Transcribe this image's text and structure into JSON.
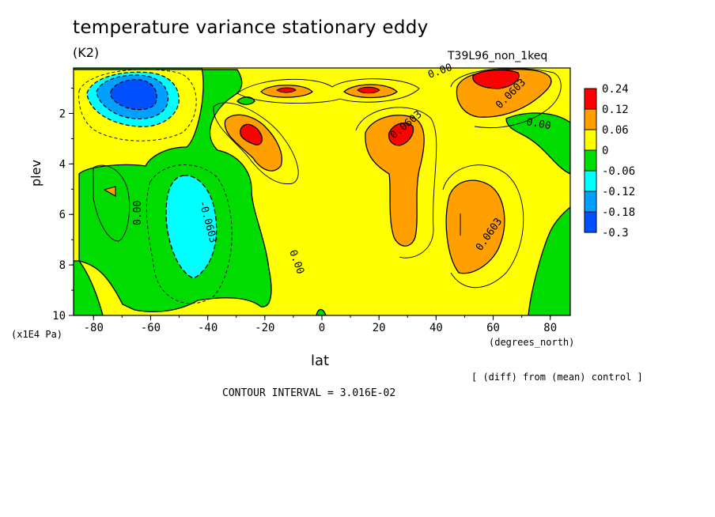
{
  "chart_data": {
    "type": "contour",
    "title": "temperature variance stationary eddy",
    "units": "(K2)",
    "run_label": "T39L96_non_1keq",
    "xlabel": "lat",
    "x_units": "(degrees_north)",
    "ylabel": "plev",
    "y_units": "(x1E4 Pa)",
    "x_ticks": [
      -80,
      -60,
      -40,
      -20,
      0,
      20,
      40,
      60,
      80
    ],
    "y_ticks": [
      2,
      4,
      6,
      8,
      10
    ],
    "xlim": [
      -87,
      87
    ],
    "ylim": [
      0.2,
      10
    ],
    "y_inverted": true,
    "colorbar": {
      "labels": [
        "0.24",
        "0.12",
        "0.06",
        "0",
        "-0.06",
        "-0.12",
        "-0.18",
        "-0.3"
      ],
      "colors": [
        "#ff0000",
        "#ff9f00",
        "#ffff00",
        "#00dc00",
        "#00ffff",
        "#00a0ff",
        "#0050ff"
      ]
    },
    "contour_labels": [
      "0.00",
      "0.00",
      "0.00",
      "0.0603",
      "0.0603",
      "0.0603",
      "-0.0603",
      "0.00"
    ],
    "note": "[ (diff) from (mean) control ]",
    "contour_interval": "CONTOUR INTERVAL = 3.016E-02",
    "features": [
      {
        "lat": -68,
        "plev": 1.0,
        "value": -0.24
      },
      {
        "lat": -47,
        "plev": 6.2,
        "value": -0.09
      },
      {
        "lat": -75,
        "plev": 5.2,
        "value": 0.07
      },
      {
        "lat": -27,
        "plev": 2.6,
        "value": 0.14
      },
      {
        "lat": -13,
        "plev": 0.9,
        "value": 0.07
      },
      {
        "lat": 15,
        "plev": 0.9,
        "value": 0.08
      },
      {
        "lat": 28,
        "plev": 2.6,
        "value": 0.15
      },
      {
        "lat": 28,
        "plev": 5.5,
        "value": 0.07
      },
      {
        "lat": 52,
        "plev": 6.2,
        "value": 0.09
      },
      {
        "lat": 63,
        "plev": 0.6,
        "value": 0.2
      },
      {
        "lat": 60,
        "plev": 1.1,
        "value": 0.09
      }
    ]
  }
}
